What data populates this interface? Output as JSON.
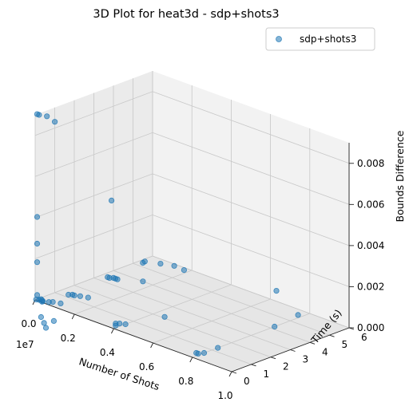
{
  "chart_data": {
    "type": "scatter",
    "projection": "3d",
    "title": "3D Plot for heat3d - sdp+shots3",
    "xlabel": "Number of Shots",
    "ylabel": "Time (s)",
    "zlabel": "Bounds Difference",
    "x_offset_label": "1e7",
    "xlim": [
      0,
      1.0
    ],
    "ylim": [
      0,
      6
    ],
    "zlim": [
      0,
      0.009
    ],
    "x_ticks": [
      "0.0",
      "0.2",
      "0.4",
      "0.6",
      "0.8",
      "1.0"
    ],
    "y_ticks": [
      "0",
      "1",
      "2",
      "3",
      "4",
      "5",
      "6"
    ],
    "z_ticks": [
      "0.000",
      "0.002",
      "0.004",
      "0.006",
      "0.008"
    ],
    "legend": {
      "position": "top-right",
      "entries": [
        "sdp+shots3"
      ]
    },
    "grid": true,
    "series": [
      {
        "name": "sdp+shots3",
        "color": "#1f77b4",
        "points": [
          {
            "x": 0.0,
            "y": 0.1,
            "z": 0.009
          },
          {
            "x": 0.01,
            "y": 0.1,
            "z": 0.009
          },
          {
            "x": 0.04,
            "y": 0.2,
            "z": 0.009
          },
          {
            "x": 0.07,
            "y": 0.3,
            "z": 0.0088
          },
          {
            "x": 0.0,
            "y": 0.1,
            "z": 0.004
          },
          {
            "x": 0.0,
            "y": 0.1,
            "z": 0.0027
          },
          {
            "x": 0.0,
            "y": 0.1,
            "z": 0.0018
          },
          {
            "x": 0.0,
            "y": 0.1,
            "z": 0.0002
          },
          {
            "x": 0.01,
            "y": 0.1,
            "z": 0.0
          },
          {
            "x": 0.02,
            "y": 0.15,
            "z": 0.0
          },
          {
            "x": 0.03,
            "y": 0.1,
            "z": 0.0
          },
          {
            "x": 0.05,
            "y": 0.2,
            "z": 0.0
          },
          {
            "x": 0.0,
            "y": 0.05,
            "z": 0.0
          },
          {
            "x": 0.01,
            "y": 0.2,
            "z": 0.0
          },
          {
            "x": 0.06,
            "y": 0.3,
            "z": 0.0
          },
          {
            "x": 0.09,
            "y": 0.4,
            "z": 0.0
          },
          {
            "x": 0.03,
            "y": 0.05,
            "z": 0.0
          },
          {
            "x": 0.02,
            "y": 0.1,
            "z": -0.0008
          },
          {
            "x": 0.04,
            "y": 0.05,
            "z": -0.001
          },
          {
            "x": 0.05,
            "y": 0.05,
            "z": -0.0012
          },
          {
            "x": 0.08,
            "y": 0.15,
            "z": -0.0008
          },
          {
            "x": 0.05,
            "y": 1.2,
            "z": 0.0
          },
          {
            "x": 0.06,
            "y": 1.3,
            "z": 0.0
          },
          {
            "x": 0.07,
            "y": 1.3,
            "z": 0.0
          },
          {
            "x": 0.09,
            "y": 1.4,
            "z": 0.0
          },
          {
            "x": 0.12,
            "y": 1.5,
            "z": 0.0
          },
          {
            "x": 0.03,
            "y": 3.4,
            "z": 0.0
          },
          {
            "x": 0.04,
            "y": 3.4,
            "z": 0.0
          },
          {
            "x": 0.06,
            "y": 3.5,
            "z": 0.0
          },
          {
            "x": 0.05,
            "y": 3.5,
            "z": 0.0
          },
          {
            "x": 0.07,
            "y": 3.5,
            "z": 0.0
          },
          {
            "x": 0.15,
            "y": 4.0,
            "z": 0.0
          },
          {
            "x": 0.05,
            "y": 3.4,
            "z": 0.0038
          },
          {
            "x": 0.45,
            "y": 2.1,
            "z": 0.0
          },
          {
            "x": 0.4,
            "y": 0.6,
            "z": 0.0
          },
          {
            "x": 0.37,
            "y": 0.4,
            "z": 0.0
          },
          {
            "x": 0.37,
            "y": 0.4,
            "z": -0.0001
          },
          {
            "x": 0.38,
            "y": 0.5,
            "z": 0.0
          },
          {
            "x": 0.78,
            "y": 0.4,
            "z": 0.0
          },
          {
            "x": 0.79,
            "y": 0.4,
            "z": 0.0
          },
          {
            "x": 0.8,
            "y": 0.6,
            "z": 0.0
          },
          {
            "x": 0.8,
            "y": 1.3,
            "z": 0.0
          },
          {
            "x": 0.8,
            "y": 4.2,
            "z": 0.0
          },
          {
            "x": 0.78,
            "y": 5.6,
            "z": 0.0
          },
          {
            "x": 0.05,
            "y": 5.0,
            "z": 0.0002
          },
          {
            "x": 0.06,
            "y": 5.0,
            "z": 0.0003
          },
          {
            "x": 0.13,
            "y": 5.1,
            "z": 0.0004
          },
          {
            "x": 0.18,
            "y": 5.3,
            "z": 0.0004
          },
          {
            "x": 0.22,
            "y": 5.4,
            "z": 0.0003
          },
          {
            "x": 0.7,
            "y": 5.3,
            "z": 0.001
          }
        ]
      }
    ]
  }
}
